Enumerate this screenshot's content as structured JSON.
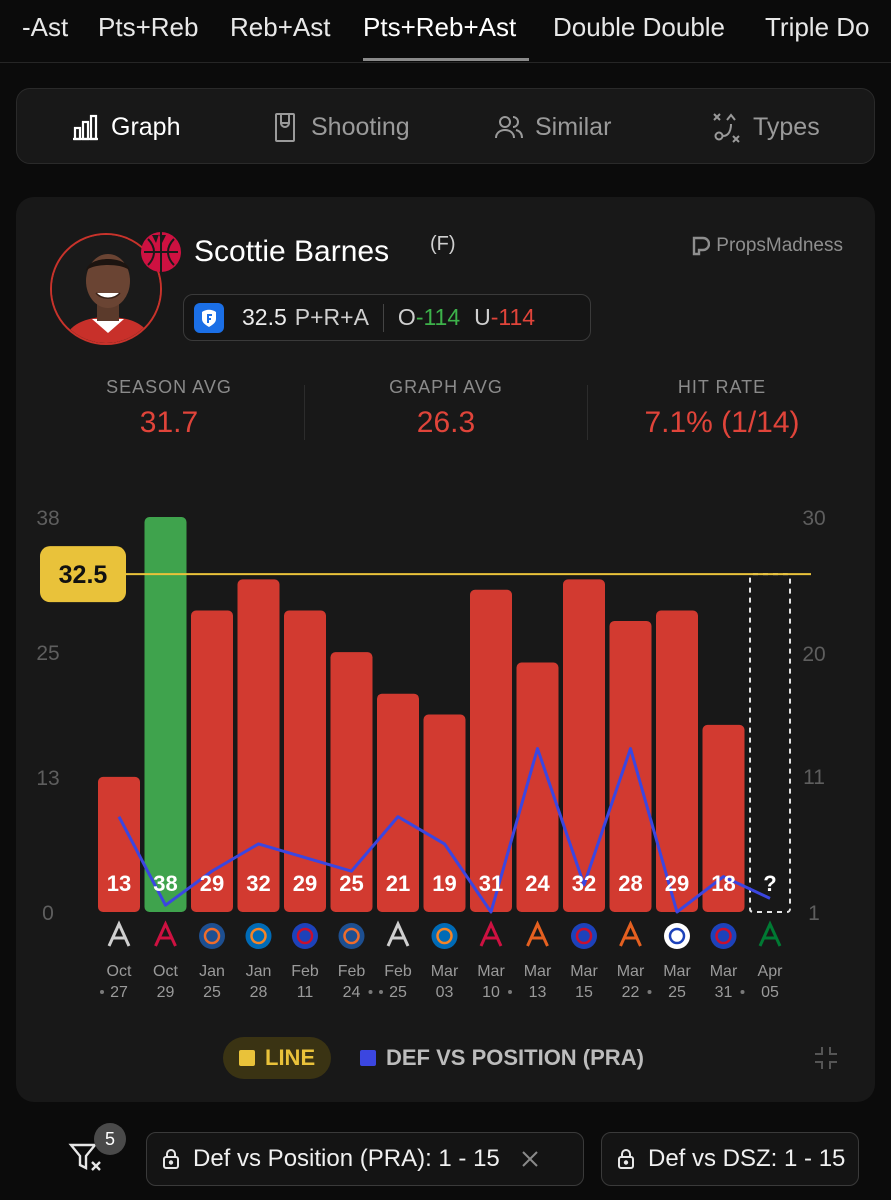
{
  "tabs": [
    {
      "label": "-Ast"
    },
    {
      "label": "Pts+Reb"
    },
    {
      "label": "Reb+Ast"
    },
    {
      "label": "Pts+Reb+Ast"
    },
    {
      "label": "Double Double"
    },
    {
      "label": "Triple Do"
    }
  ],
  "view_switch": {
    "graph": "Graph",
    "shooting": "Shooting",
    "similar": "Similar",
    "types": "Types"
  },
  "player": {
    "name": "Scottie Barnes",
    "position": "(F)",
    "brand": "PropsMadness",
    "line_value": "32.5",
    "stat_type": "P+R+A",
    "over_label": "O",
    "over_odds": "-114",
    "under_label": "U",
    "under_odds": "-114"
  },
  "stats": {
    "season_label": "SEASON AVG",
    "season_value": "31.7",
    "graph_label": "GRAPH AVG",
    "graph_value": "26.3",
    "hit_label": "HIT RATE",
    "hit_value": "7.1% (1/14)"
  },
  "colors": {
    "miss": "#d23a30",
    "hit": "#3fa34d",
    "line": "#e9c23a",
    "def": "#3b46e0"
  },
  "chart_data": {
    "type": "bar",
    "left_axis_ticks": [
      38,
      25,
      13,
      0
    ],
    "right_axis_ticks": [
      30,
      20,
      11,
      1
    ],
    "ylim": [
      0,
      38
    ],
    "right_ylim": [
      1,
      30
    ],
    "line_value": 32.5,
    "line_label": "32.5",
    "categories": [
      {
        "month": "Oct",
        "day": "27",
        "opp": "SAS",
        "dot_before": true,
        "dot_after": false
      },
      {
        "month": "Oct",
        "day": "29",
        "opp": "HOU",
        "dot_before": false,
        "dot_after": false
      },
      {
        "month": "Jan",
        "day": "25",
        "opp": "OKC",
        "dot_before": false,
        "dot_after": false
      },
      {
        "month": "Jan",
        "day": "28",
        "opp": "NYK",
        "dot_before": false,
        "dot_after": false
      },
      {
        "month": "Feb",
        "day": "11",
        "opp": "DET",
        "dot_before": false,
        "dot_after": false
      },
      {
        "month": "Feb",
        "day": "24",
        "opp": "OKC",
        "dot_before": false,
        "dot_after": true
      },
      {
        "month": "Feb",
        "day": "25",
        "opp": "SAS",
        "dot_before": true,
        "dot_after": false
      },
      {
        "month": "Mar",
        "day": "03",
        "opp": "NYK",
        "dot_before": false,
        "dot_after": false
      },
      {
        "month": "Mar",
        "day": "10",
        "opp": "HOU",
        "dot_before": false,
        "dot_after": true
      },
      {
        "month": "Mar",
        "day": "13",
        "opp": "PHX",
        "dot_before": false,
        "dot_after": false
      },
      {
        "month": "Mar",
        "day": "15",
        "opp": "DET",
        "dot_before": false,
        "dot_after": false
      },
      {
        "month": "Mar",
        "day": "22",
        "opp": "PHX",
        "dot_before": false,
        "dot_after": true
      },
      {
        "month": "Mar",
        "day": "25",
        "opp": "LAC",
        "dot_before": false,
        "dot_after": false
      },
      {
        "month": "Mar",
        "day": "31",
        "opp": "DET",
        "dot_before": false,
        "dot_after": true
      },
      {
        "month": "Apr",
        "day": "05",
        "opp": "BOS",
        "dot_before": false,
        "dot_after": false
      }
    ],
    "values": [
      13,
      38,
      29,
      32,
      29,
      25,
      21,
      19,
      31,
      24,
      32,
      28,
      29,
      18,
      null
    ],
    "value_labels": [
      "13",
      "38",
      "29",
      "32",
      "29",
      "25",
      "21",
      "19",
      "31",
      "24",
      "32",
      "28",
      "29",
      "18",
      "?"
    ],
    "hits": [
      false,
      true,
      false,
      false,
      false,
      false,
      false,
      false,
      false,
      false,
      false,
      false,
      false,
      false,
      false
    ],
    "series": [
      {
        "name": "DEF VS POSITION (PRA)",
        "axis": "right",
        "values": [
          8,
          1.5,
          4,
          6,
          5,
          4,
          8,
          6,
          1,
          13,
          3,
          13,
          1,
          3.6,
          2
        ]
      }
    ],
    "legend": [
      "LINE",
      "DEF VS POSITION (PRA)"
    ]
  },
  "filters": {
    "badge_count": "5",
    "chip1": "Def vs Position (PRA): 1 - 15",
    "chip2": "Def vs DSZ: 1 - 15"
  }
}
